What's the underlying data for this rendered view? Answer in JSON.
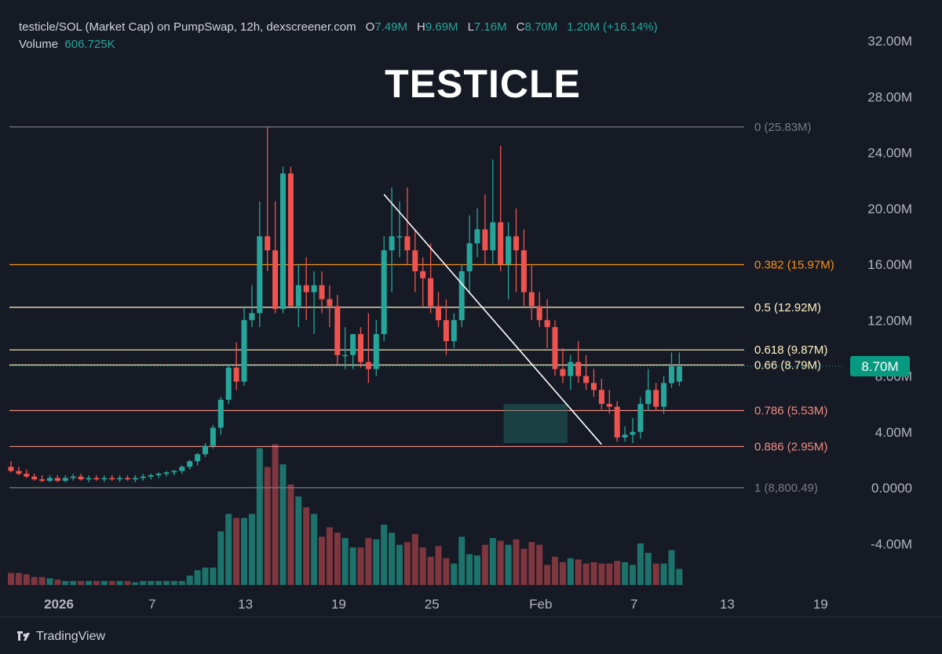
{
  "header": {
    "title": "testicle/SOL (Market Cap) on PumpSwap, 12h, dexscreener.com",
    "open_label": "O",
    "open": "7.49M",
    "high_label": "H",
    "high": "9.69M",
    "low_label": "L",
    "low": "7.16M",
    "close_label": "C",
    "close": "8.70M",
    "change": "1.20M (+16.14%)",
    "volume_label": "Volume",
    "volume": "606.725K"
  },
  "overlay_title": "TESTICLE",
  "brand": "TradingView",
  "price_tag": "8.70M",
  "colors": {
    "background": "#161A25",
    "up": "#26A69A",
    "down": "#EF5350",
    "text": "#D1D4DC",
    "axis_text": "#B2B5BE"
  },
  "chart_data": {
    "type": "candlestick",
    "y_unit": "market cap (USD)",
    "ylim": [
      -6.9,
      34.2
    ],
    "yticks": [
      {
        "value": 32,
        "label": "32.00M"
      },
      {
        "value": 28,
        "label": "28.00M"
      },
      {
        "value": 24,
        "label": "24.00M"
      },
      {
        "value": 20,
        "label": "20.00M"
      },
      {
        "value": 16,
        "label": "16.00M"
      },
      {
        "value": 12,
        "label": "12.00M"
      },
      {
        "value": 8,
        "label": "8.00M"
      },
      {
        "value": 4,
        "label": "4.00M"
      },
      {
        "value": 0,
        "label": "0.0000"
      },
      {
        "value": -4,
        "label": "-4.00M"
      }
    ],
    "xticks": [
      {
        "label": "2026",
        "date": "2026-01-01"
      },
      {
        "label": "7",
        "date": "2026-01-07"
      },
      {
        "label": "13",
        "date": "2026-01-13"
      },
      {
        "label": "19",
        "date": "2026-01-19"
      },
      {
        "label": "25",
        "date": "2026-01-25"
      },
      {
        "label": "Feb",
        "date": "2026-02-01"
      },
      {
        "label": "7",
        "date": "2026-02-07"
      },
      {
        "label": "13",
        "date": "2026-02-13"
      },
      {
        "label": "19",
        "date": "2026-02-19"
      }
    ],
    "fib_levels": [
      {
        "label": "0 (25.83M)",
        "value": 25.83,
        "color": "#787B86"
      },
      {
        "label": "0.382 (15.97M)",
        "value": 15.97,
        "color": "#F7931A"
      },
      {
        "label": "0.5 (12.92M)",
        "value": 12.92,
        "color": "#FFF4C2"
      },
      {
        "label": "0.618 (9.87M)",
        "value": 9.87,
        "color": "#FFF4C2"
      },
      {
        "label": "0.66 (8.79M)",
        "value": 8.79,
        "color": "#FFF4C2"
      },
      {
        "label": "0.786 (5.53M)",
        "value": 5.53,
        "color": "#F28B82"
      },
      {
        "label": "0.886 (2.95M)",
        "value": 2.95,
        "color": "#F28B82"
      },
      {
        "label": "1 (8,800.49)",
        "value": 0.0088,
        "color": "#787B86"
      }
    ],
    "trendline": {
      "from": {
        "bar": 48,
        "value": 21.0
      },
      "to": {
        "bar": 76,
        "value": 3.1
      }
    },
    "zone": {
      "from_bar": 64,
      "to_bar": 71,
      "top": 6.0,
      "bottom": 3.2
    },
    "candles": [
      {
        "o": 1.5,
        "h": 1.9,
        "l": 1.1,
        "c": 1.2,
        "v": 0.9
      },
      {
        "o": 1.2,
        "h": 1.5,
        "l": 0.9,
        "c": 1.0,
        "v": 0.9
      },
      {
        "o": 1.0,
        "h": 1.3,
        "l": 0.7,
        "c": 0.8,
        "v": 0.8
      },
      {
        "o": 0.8,
        "h": 1.0,
        "l": 0.5,
        "c": 0.6,
        "v": 0.6
      },
      {
        "o": 0.6,
        "h": 0.9,
        "l": 0.4,
        "c": 0.5,
        "v": 0.6
      },
      {
        "o": 0.5,
        "h": 0.9,
        "l": 0.4,
        "c": 0.7,
        "v": 0.5
      },
      {
        "o": 0.7,
        "h": 0.9,
        "l": 0.4,
        "c": 0.5,
        "v": 0.4
      },
      {
        "o": 0.5,
        "h": 0.9,
        "l": 0.4,
        "c": 0.7,
        "v": 0.3
      },
      {
        "o": 0.7,
        "h": 1.0,
        "l": 0.5,
        "c": 0.8,
        "v": 0.3
      },
      {
        "o": 0.8,
        "h": 1.0,
        "l": 0.5,
        "c": 0.6,
        "v": 0.3
      },
      {
        "o": 0.6,
        "h": 0.9,
        "l": 0.4,
        "c": 0.7,
        "v": 0.3
      },
      {
        "o": 0.7,
        "h": 0.9,
        "l": 0.5,
        "c": 0.6,
        "v": 0.3
      },
      {
        "o": 0.6,
        "h": 0.9,
        "l": 0.4,
        "c": 0.7,
        "v": 0.3
      },
      {
        "o": 0.7,
        "h": 0.9,
        "l": 0.5,
        "c": 0.6,
        "v": 0.3
      },
      {
        "o": 0.6,
        "h": 0.9,
        "l": 0.4,
        "c": 0.7,
        "v": 0.3
      },
      {
        "o": 0.7,
        "h": 0.9,
        "l": 0.5,
        "c": 0.6,
        "v": 0.3
      },
      {
        "o": 0.6,
        "h": 0.9,
        "l": 0.4,
        "c": 0.7,
        "v": 0.2
      },
      {
        "o": 0.7,
        "h": 1.0,
        "l": 0.5,
        "c": 0.8,
        "v": 0.3
      },
      {
        "o": 0.8,
        "h": 1.0,
        "l": 0.6,
        "c": 0.9,
        "v": 0.3
      },
      {
        "o": 0.9,
        "h": 1.1,
        "l": 0.7,
        "c": 1.0,
        "v": 0.3
      },
      {
        "o": 1.0,
        "h": 1.2,
        "l": 0.8,
        "c": 1.1,
        "v": 0.3
      },
      {
        "o": 1.1,
        "h": 1.3,
        "l": 0.9,
        "c": 1.2,
        "v": 0.3
      },
      {
        "o": 1.2,
        "h": 1.6,
        "l": 1.0,
        "c": 1.5,
        "v": 0.3
      },
      {
        "o": 1.5,
        "h": 2.0,
        "l": 1.3,
        "c": 1.9,
        "v": 0.7
      },
      {
        "o": 1.9,
        "h": 2.5,
        "l": 1.6,
        "c": 2.4,
        "v": 1.1
      },
      {
        "o": 2.4,
        "h": 3.2,
        "l": 2.2,
        "c": 3.0,
        "v": 1.3
      },
      {
        "o": 3.0,
        "h": 4.5,
        "l": 2.8,
        "c": 4.3,
        "v": 1.3
      },
      {
        "o": 4.3,
        "h": 6.5,
        "l": 3.8,
        "c": 6.3,
        "v": 4.0
      },
      {
        "o": 6.3,
        "h": 8.8,
        "l": 6.0,
        "c": 8.6,
        "v": 5.3
      },
      {
        "o": 8.6,
        "h": 10.4,
        "l": 7.0,
        "c": 7.6,
        "v": 5.0
      },
      {
        "o": 7.6,
        "h": 13.0,
        "l": 7.3,
        "c": 12.0,
        "v": 5.0
      },
      {
        "o": 12.0,
        "h": 14.5,
        "l": 11.5,
        "c": 12.5,
        "v": 5.3
      },
      {
        "o": 12.5,
        "h": 20.5,
        "l": 11.5,
        "c": 18.0,
        "v": 10.2
      },
      {
        "o": 18.0,
        "h": 25.83,
        "l": 15.5,
        "c": 17.0,
        "v": 8.8
      },
      {
        "o": 17.0,
        "h": 20.5,
        "l": 12.5,
        "c": 12.8,
        "v": 10.5
      },
      {
        "o": 12.8,
        "h": 23.0,
        "l": 12.5,
        "c": 22.5,
        "v": 9.0
      },
      {
        "o": 22.5,
        "h": 23.0,
        "l": 13.0,
        "c": 13.0,
        "v": 7.5
      },
      {
        "o": 13.0,
        "h": 16.0,
        "l": 11.5,
        "c": 14.5,
        "v": 6.6
      },
      {
        "o": 14.5,
        "h": 16.5,
        "l": 12.0,
        "c": 14.0,
        "v": 5.8
      },
      {
        "o": 14.0,
        "h": 15.5,
        "l": 11.0,
        "c": 14.5,
        "v": 5.3
      },
      {
        "o": 14.5,
        "h": 15.5,
        "l": 12.5,
        "c": 13.5,
        "v": 3.6
      },
      {
        "o": 13.5,
        "h": 14.5,
        "l": 11.5,
        "c": 13.0,
        "v": 4.3
      },
      {
        "o": 13.0,
        "h": 13.8,
        "l": 8.8,
        "c": 9.5,
        "v": 3.9
      },
      {
        "o": 9.5,
        "h": 11.5,
        "l": 8.5,
        "c": 9.5,
        "v": 3.5
      },
      {
        "o": 9.5,
        "h": 11.0,
        "l": 8.5,
        "c": 11.0,
        "v": 2.8
      },
      {
        "o": 11.0,
        "h": 11.5,
        "l": 8.6,
        "c": 9.0,
        "v": 2.8
      },
      {
        "o": 9.0,
        "h": 12.5,
        "l": 7.5,
        "c": 8.5,
        "v": 3.5
      },
      {
        "o": 8.5,
        "h": 12.0,
        "l": 8.0,
        "c": 11.0,
        "v": 3.4
      },
      {
        "o": 11.0,
        "h": 18.0,
        "l": 10.5,
        "c": 17.0,
        "v": 4.5
      },
      {
        "o": 17.0,
        "h": 21.5,
        "l": 14.0,
        "c": 18.0,
        "v": 3.9
      },
      {
        "o": 18.0,
        "h": 20.5,
        "l": 16.5,
        "c": 18.0,
        "v": 3.0
      },
      {
        "o": 18.0,
        "h": 21.5,
        "l": 16.0,
        "c": 17.0,
        "v": 3.2
      },
      {
        "o": 17.0,
        "h": 18.5,
        "l": 14.0,
        "c": 15.5,
        "v": 3.8
      },
      {
        "o": 15.5,
        "h": 16.5,
        "l": 13.0,
        "c": 15.0,
        "v": 2.8
      },
      {
        "o": 15.0,
        "h": 17.5,
        "l": 12.5,
        "c": 13.0,
        "v": 2.1
      },
      {
        "o": 13.0,
        "h": 14.0,
        "l": 11.5,
        "c": 12.0,
        "v": 2.9
      },
      {
        "o": 12.0,
        "h": 13.5,
        "l": 9.5,
        "c": 10.5,
        "v": 2.0
      },
      {
        "o": 10.5,
        "h": 12.5,
        "l": 10.0,
        "c": 12.0,
        "v": 1.6
      },
      {
        "o": 12.0,
        "h": 16.0,
        "l": 11.5,
        "c": 15.5,
        "v": 3.6
      },
      {
        "o": 15.5,
        "h": 19.5,
        "l": 14.0,
        "c": 17.5,
        "v": 2.3
      },
      {
        "o": 17.5,
        "h": 20.0,
        "l": 16.5,
        "c": 18.5,
        "v": 2.2
      },
      {
        "o": 18.5,
        "h": 21.0,
        "l": 16.0,
        "c": 17.0,
        "v": 3.0
      },
      {
        "o": 17.0,
        "h": 23.5,
        "l": 16.0,
        "c": 19.0,
        "v": 3.5
      },
      {
        "o": 19.0,
        "h": 24.5,
        "l": 15.5,
        "c": 16.0,
        "v": 3.3
      },
      {
        "o": 16.0,
        "h": 19.0,
        "l": 13.5,
        "c": 18.0,
        "v": 3.0
      },
      {
        "o": 18.0,
        "h": 20.0,
        "l": 14.0,
        "c": 17.0,
        "v": 3.4
      },
      {
        "o": 17.0,
        "h": 18.5,
        "l": 13.0,
        "c": 14.0,
        "v": 2.7
      },
      {
        "o": 14.0,
        "h": 16.0,
        "l": 12.0,
        "c": 13.0,
        "v": 3.2
      },
      {
        "o": 13.0,
        "h": 14.0,
        "l": 11.5,
        "c": 12.0,
        "v": 3.0
      },
      {
        "o": 12.0,
        "h": 13.5,
        "l": 10.0,
        "c": 11.5,
        "v": 1.5
      },
      {
        "o": 11.5,
        "h": 12.0,
        "l": 8.0,
        "c": 8.5,
        "v": 2.1
      },
      {
        "o": 8.5,
        "h": 10.0,
        "l": 7.5,
        "c": 8.0,
        "v": 1.7
      },
      {
        "o": 8.0,
        "h": 9.5,
        "l": 7.0,
        "c": 9.0,
        "v": 2.0
      },
      {
        "o": 9.0,
        "h": 10.5,
        "l": 7.5,
        "c": 8.0,
        "v": 1.9
      },
      {
        "o": 8.0,
        "h": 9.5,
        "l": 7.0,
        "c": 7.5,
        "v": 1.6
      },
      {
        "o": 7.5,
        "h": 8.5,
        "l": 6.5,
        "c": 7.0,
        "v": 1.7
      },
      {
        "o": 7.0,
        "h": 7.8,
        "l": 5.6,
        "c": 6.0,
        "v": 1.6
      },
      {
        "o": 6.0,
        "h": 7.0,
        "l": 5.3,
        "c": 5.8,
        "v": 1.6
      },
      {
        "o": 5.8,
        "h": 6.2,
        "l": 3.3,
        "c": 3.6,
        "v": 1.8
      },
      {
        "o": 3.6,
        "h": 4.4,
        "l": 3.3,
        "c": 3.8,
        "v": 1.7
      },
      {
        "o": 3.8,
        "h": 5.0,
        "l": 3.2,
        "c": 4.0,
        "v": 1.5
      },
      {
        "o": 4.0,
        "h": 6.5,
        "l": 3.5,
        "c": 6.0,
        "v": 3.1
      },
      {
        "o": 6.0,
        "h": 8.5,
        "l": 5.5,
        "c": 7.0,
        "v": 2.4
      },
      {
        "o": 7.0,
        "h": 7.5,
        "l": 5.5,
        "c": 5.8,
        "v": 1.6
      },
      {
        "o": 5.8,
        "h": 8.0,
        "l": 5.3,
        "c": 7.5,
        "v": 1.6
      },
      {
        "o": 7.49,
        "h": 9.69,
        "l": 7.16,
        "c": 8.7,
        "v": 2.6
      },
      {
        "o": 7.6,
        "h": 9.69,
        "l": 7.3,
        "c": 8.7,
        "v": 1.2
      }
    ]
  }
}
